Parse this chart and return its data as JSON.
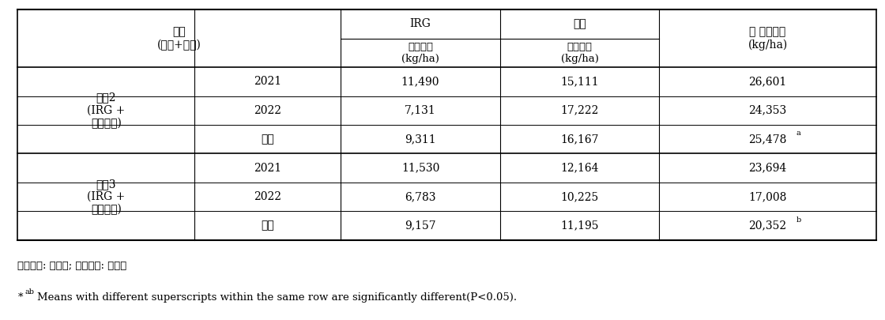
{
  "header_row1": [
    "처리\n(동계+하계)",
    "",
    "IRG",
    "하계",
    "총 건물수량\n(kg/ha)"
  ],
  "header_row2": [
    "",
    "",
    "건물수량\n(kg/ha)",
    "건물수량\n(kg/ha)",
    ""
  ],
  "col1_merged": [
    "작부2\n(IRG +\n사료용벼)",
    "작부3\n(IRG +\n사료용피)"
  ],
  "rows": [
    [
      "작부2",
      "(IRG +",
      "사료용벼)",
      "2021",
      "11,490",
      "15,111",
      "26,601"
    ],
    [
      "",
      "",
      "",
      "2022",
      "7,131",
      "17,222",
      "24,353"
    ],
    [
      "",
      "",
      "",
      "평균",
      "9,311",
      "16,167",
      "25,478a"
    ],
    [
      "작부3",
      "(IRG +",
      "사료용피)",
      "2021",
      "11,530",
      "12,164",
      "23,694"
    ],
    [
      "",
      "",
      "",
      "2022",
      "6,783",
      "10,225",
      "17,008"
    ],
    [
      "",
      "",
      "",
      "평균",
      "9,157",
      "11,195",
      "20,352b"
    ]
  ],
  "data_rows": [
    [
      "2021",
      "11,490",
      "15,111",
      "26,601"
    ],
    [
      "2022",
      "7,131",
      "17,222",
      "24,353"
    ],
    [
      "평균",
      "9,311",
      "16,167",
      "25,478a"
    ],
    [
      "2021",
      "11,530",
      "12,164",
      "23,694"
    ],
    [
      "2022",
      "6,783",
      "10,225",
      "17,008"
    ],
    [
      "평균",
      "9,157",
      "11,195",
      "20,352b"
    ]
  ],
  "group1_label": [
    "작부2",
    "(IRG +",
    "사료용벼)"
  ],
  "group2_label": [
    "작부3",
    "(IRG +",
    "사료용피)"
  ],
  "footnote1": "사료용벼: 황숙기; 사료용피: 출수기",
  "footnote2": "*abMeans with different superscripts within the same row are significantly different(P<0.05).",
  "bg_color": "#ffffff",
  "text_color": "#000000",
  "line_color": "#000000"
}
